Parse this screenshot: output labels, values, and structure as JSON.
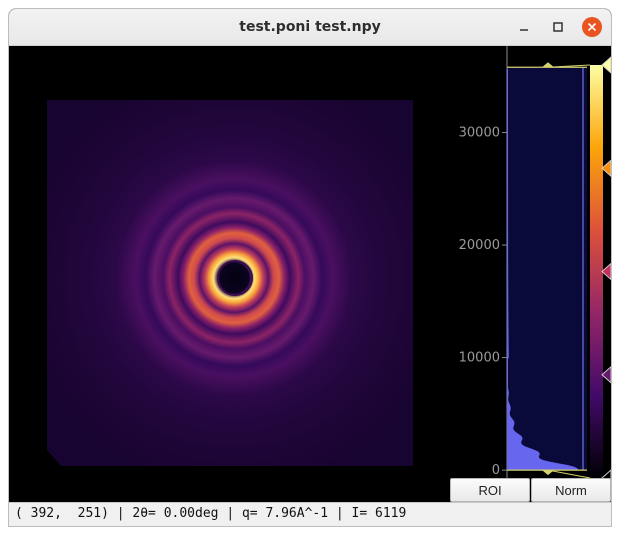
{
  "window": {
    "title": "test.poni   test.npy"
  },
  "histogram": {
    "tick_labels": [
      "30000",
      "20000",
      "10000",
      "0"
    ],
    "tick_values": [
      30000,
      20000,
      10000,
      0
    ],
    "range": [
      -700,
      36000
    ],
    "level_min": 0,
    "level_max": 35800,
    "gradient_stops": [
      "#000004",
      "#420a68",
      "#932667",
      "#dd513a",
      "#fca50a",
      "#fcffa4"
    ],
    "gradient_markers": [
      "#fcffa4",
      "#f98e09",
      "#c42f5c",
      "#6a176e",
      "#000004"
    ],
    "fill_color": "#6666ee",
    "background": "#0a0a3a"
  },
  "buttons": {
    "roi": "ROI",
    "norm": "Norm"
  },
  "status": {
    "text": "( 392,  251) | 2θ= 0.00deg | q= 7.96A^-1 | I= 6119"
  },
  "colors": {
    "titlebar": "#ececec",
    "close_button": "#e95420",
    "level_marker": "#d4d26a"
  }
}
